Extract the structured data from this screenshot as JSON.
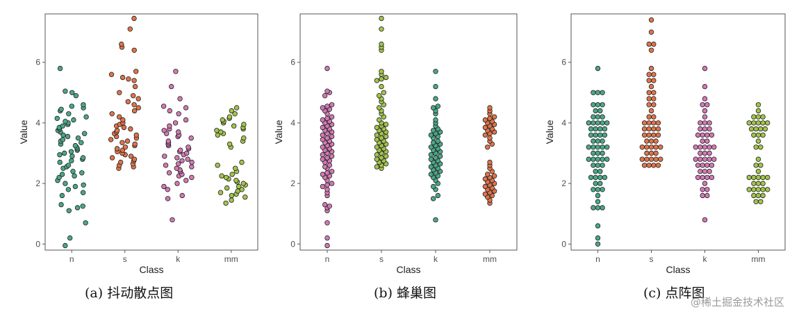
{
  "figure": {
    "captions": [
      "(a)  抖动散点图",
      "(b)  蜂巢图",
      "(c)  点阵图"
    ],
    "watermark": "@稀土掘金技术社区"
  },
  "colors": {
    "n_jitter": "#4aa88a",
    "s_jitter": "#e0744a",
    "k_jitter": "#d479b5",
    "mm_jitter": "#a2c44a",
    "n_beeswarm": "#d479b5",
    "s_beeswarm": "#a2c44a",
    "k_beeswarm": "#4aa88a",
    "mm_beeswarm": "#e0744a",
    "n_dot": "#4aa88a",
    "s_dot": "#e0744a",
    "k_dot": "#d479b5",
    "mm_dot": "#a2c44a",
    "point_edge": "#1f1f1f",
    "panel_border": "#555555"
  },
  "chart_data": [
    {
      "type": "scatter",
      "style": "jitter",
      "categories": [
        "n",
        "s",
        "k",
        "mm"
      ],
      "xlabel": "Class",
      "ylabel": "Value",
      "ylim": [
        -0.2,
        7.6
      ],
      "yticks": [
        0,
        2,
        4,
        6
      ],
      "grid": false,
      "series": [
        {
          "category": "n",
          "color_key": "n_jitter",
          "values": [
            -0.05,
            0.2,
            0.7,
            1.1,
            1.2,
            1.3,
            1.25,
            1.6,
            1.7,
            1.8,
            1.9,
            1.95,
            2.0,
            2.1,
            2.2,
            2.25,
            2.3,
            2.35,
            2.4,
            2.5,
            2.55,
            2.6,
            2.7,
            2.75,
            2.8,
            2.85,
            2.9,
            2.95,
            3.0,
            3.05,
            3.1,
            3.15,
            3.2,
            3.25,
            3.3,
            3.35,
            3.4,
            3.45,
            3.5,
            3.55,
            3.6,
            3.65,
            3.7,
            3.75,
            3.8,
            3.85,
            3.9,
            3.95,
            4.0,
            4.05,
            4.1,
            4.15,
            4.2,
            4.3,
            4.4,
            4.45,
            4.5,
            4.55,
            4.6,
            4.9,
            5.0,
            5.05,
            5.8
          ]
        },
        {
          "category": "s",
          "color_key": "s_jitter",
          "values": [
            2.5,
            2.55,
            2.6,
            2.65,
            2.7,
            2.75,
            2.8,
            2.85,
            2.9,
            2.95,
            3.0,
            3.05,
            3.1,
            3.15,
            3.2,
            3.25,
            3.3,
            3.35,
            3.4,
            3.45,
            3.5,
            3.55,
            3.6,
            3.65,
            3.7,
            3.75,
            3.8,
            3.85,
            3.9,
            3.95,
            4.0,
            4.1,
            4.2,
            4.3,
            4.4,
            4.5,
            4.6,
            4.7,
            4.8,
            4.9,
            5.0,
            5.2,
            5.4,
            5.45,
            5.5,
            5.6,
            5.7,
            6.4,
            6.5,
            6.6,
            7.1,
            7.45
          ]
        },
        {
          "category": "k",
          "color_key": "k_jitter",
          "values": [
            0.8,
            1.5,
            1.6,
            1.8,
            1.9,
            2.0,
            2.1,
            2.2,
            2.25,
            2.3,
            2.35,
            2.4,
            2.45,
            2.5,
            2.55,
            2.6,
            2.65,
            2.7,
            2.75,
            2.8,
            2.85,
            2.9,
            2.95,
            3.0,
            3.05,
            3.1,
            3.15,
            3.2,
            3.25,
            3.3,
            3.35,
            3.4,
            3.5,
            3.55,
            3.6,
            3.65,
            3.7,
            3.75,
            3.8,
            3.9,
            4.0,
            4.1,
            4.3,
            4.4,
            4.5,
            4.55,
            4.8,
            5.2,
            5.7
          ]
        },
        {
          "category": "mm",
          "color_key": "mm_jitter",
          "values": [
            1.35,
            1.45,
            1.55,
            1.6,
            1.65,
            1.7,
            1.75,
            1.8,
            1.85,
            1.9,
            1.95,
            2.0,
            2.05,
            2.1,
            2.15,
            2.2,
            2.25,
            2.3,
            2.4,
            2.5,
            2.6,
            2.7,
            3.2,
            3.3,
            3.4,
            3.5,
            3.6,
            3.65,
            3.7,
            3.75,
            3.8,
            3.85,
            3.9,
            3.95,
            4.0,
            4.05,
            4.1,
            4.15,
            4.2,
            4.3,
            4.4,
            4.5
          ]
        }
      ]
    },
    {
      "type": "scatter",
      "style": "beeswarm",
      "categories": [
        "n",
        "s",
        "k",
        "mm"
      ],
      "xlabel": "Class",
      "ylabel": "Value",
      "ylim": [
        -0.2,
        7.6
      ],
      "yticks": [
        0,
        2,
        4,
        6
      ],
      "grid": false,
      "series": [
        {
          "category": "n",
          "color_key": "n_beeswarm",
          "values": [
            -0.05,
            0.2,
            0.7,
            1.1,
            1.2,
            1.3,
            1.25,
            1.6,
            1.7,
            1.8,
            1.9,
            1.95,
            2.0,
            2.1,
            2.2,
            2.25,
            2.3,
            2.35,
            2.4,
            2.5,
            2.55,
            2.6,
            2.7,
            2.75,
            2.8,
            2.85,
            2.9,
            2.95,
            3.0,
            3.05,
            3.1,
            3.15,
            3.2,
            3.25,
            3.3,
            3.35,
            3.4,
            3.45,
            3.5,
            3.55,
            3.6,
            3.65,
            3.7,
            3.75,
            3.8,
            3.85,
            3.9,
            3.95,
            4.0,
            4.05,
            4.1,
            4.15,
            4.2,
            4.3,
            4.4,
            4.45,
            4.5,
            4.55,
            4.6,
            4.9,
            5.0,
            5.05,
            5.8
          ]
        },
        {
          "category": "s",
          "color_key": "s_beeswarm",
          "values": [
            2.5,
            2.55,
            2.6,
            2.65,
            2.7,
            2.75,
            2.8,
            2.85,
            2.9,
            2.95,
            3.0,
            3.05,
            3.1,
            3.15,
            3.2,
            3.25,
            3.3,
            3.35,
            3.4,
            3.45,
            3.5,
            3.55,
            3.6,
            3.65,
            3.7,
            3.75,
            3.8,
            3.85,
            3.9,
            3.95,
            4.0,
            4.1,
            4.2,
            4.3,
            4.4,
            4.5,
            4.6,
            4.7,
            4.8,
            4.9,
            5.0,
            5.2,
            5.4,
            5.45,
            5.5,
            5.6,
            5.7,
            6.4,
            6.5,
            6.6,
            7.1,
            7.45
          ]
        },
        {
          "category": "k",
          "color_key": "k_beeswarm",
          "values": [
            0.8,
            1.5,
            1.6,
            1.8,
            1.9,
            2.0,
            2.1,
            2.2,
            2.25,
            2.3,
            2.35,
            2.4,
            2.45,
            2.5,
            2.55,
            2.6,
            2.65,
            2.7,
            2.75,
            2.8,
            2.85,
            2.9,
            2.95,
            3.0,
            3.05,
            3.1,
            3.15,
            3.2,
            3.25,
            3.3,
            3.35,
            3.4,
            3.5,
            3.55,
            3.6,
            3.65,
            3.7,
            3.75,
            3.8,
            3.9,
            4.0,
            4.1,
            4.3,
            4.4,
            4.5,
            4.55,
            4.8,
            5.2,
            5.7
          ]
        },
        {
          "category": "mm",
          "color_key": "mm_beeswarm",
          "values": [
            1.35,
            1.45,
            1.55,
            1.6,
            1.65,
            1.7,
            1.75,
            1.8,
            1.85,
            1.9,
            1.95,
            2.0,
            2.05,
            2.1,
            2.15,
            2.2,
            2.25,
            2.3,
            2.4,
            2.5,
            2.6,
            2.7,
            3.2,
            3.3,
            3.4,
            3.5,
            3.6,
            3.65,
            3.7,
            3.75,
            3.8,
            3.85,
            3.9,
            3.95,
            4.0,
            4.05,
            4.1,
            4.15,
            4.2,
            4.3,
            4.4,
            4.5
          ]
        }
      ]
    },
    {
      "type": "scatter",
      "style": "dotplot",
      "categories": [
        "n",
        "s",
        "k",
        "mm"
      ],
      "xlabel": "Class",
      "ylabel": "Value",
      "ylim": [
        -0.2,
        7.6
      ],
      "yticks": [
        0,
        2,
        4,
        6
      ],
      "grid": false,
      "series": [
        {
          "category": "n",
          "color_key": "n_dot",
          "values": [
            -0.05,
            0.2,
            0.7,
            1.1,
            1.2,
            1.3,
            1.25,
            1.6,
            1.7,
            1.8,
            1.9,
            1.95,
            2.0,
            2.1,
            2.2,
            2.25,
            2.3,
            2.35,
            2.4,
            2.5,
            2.55,
            2.6,
            2.7,
            2.75,
            2.8,
            2.85,
            2.9,
            2.95,
            3.0,
            3.05,
            3.1,
            3.15,
            3.2,
            3.25,
            3.3,
            3.35,
            3.4,
            3.45,
            3.5,
            3.55,
            3.6,
            3.65,
            3.7,
            3.75,
            3.8,
            3.85,
            3.9,
            3.95,
            4.0,
            4.05,
            4.1,
            4.15,
            4.2,
            4.3,
            4.4,
            4.45,
            4.5,
            4.55,
            4.6,
            4.9,
            5.0,
            5.05,
            5.8
          ]
        },
        {
          "category": "s",
          "color_key": "s_dot",
          "values": [
            2.5,
            2.55,
            2.6,
            2.65,
            2.7,
            2.75,
            2.8,
            2.85,
            2.9,
            2.95,
            3.0,
            3.05,
            3.1,
            3.15,
            3.2,
            3.25,
            3.3,
            3.35,
            3.4,
            3.45,
            3.5,
            3.55,
            3.6,
            3.65,
            3.7,
            3.75,
            3.8,
            3.85,
            3.9,
            3.95,
            4.0,
            4.1,
            4.2,
            4.3,
            4.4,
            4.5,
            4.6,
            4.7,
            4.8,
            4.9,
            5.0,
            5.2,
            5.4,
            5.45,
            5.5,
            5.6,
            5.7,
            6.4,
            6.5,
            6.6,
            7.1,
            7.45
          ]
        },
        {
          "category": "k",
          "color_key": "k_dot",
          "values": [
            0.8,
            1.5,
            1.6,
            1.8,
            1.9,
            2.0,
            2.1,
            2.2,
            2.25,
            2.3,
            2.35,
            2.4,
            2.45,
            2.5,
            2.55,
            2.6,
            2.65,
            2.7,
            2.75,
            2.8,
            2.85,
            2.9,
            2.95,
            3.0,
            3.05,
            3.1,
            3.15,
            3.2,
            3.25,
            3.3,
            3.35,
            3.4,
            3.5,
            3.55,
            3.6,
            3.65,
            3.7,
            3.75,
            3.8,
            3.9,
            4.0,
            4.1,
            4.3,
            4.4,
            4.5,
            4.55,
            4.8,
            5.2,
            5.7
          ]
        },
        {
          "category": "mm",
          "color_key": "mm_dot",
          "values": [
            1.35,
            1.45,
            1.55,
            1.6,
            1.65,
            1.7,
            1.75,
            1.8,
            1.85,
            1.9,
            1.95,
            2.0,
            2.05,
            2.1,
            2.15,
            2.2,
            2.25,
            2.3,
            2.4,
            2.5,
            2.6,
            2.7,
            3.2,
            3.3,
            3.4,
            3.5,
            3.6,
            3.65,
            3.7,
            3.75,
            3.8,
            3.85,
            3.9,
            3.95,
            4.0,
            4.05,
            4.1,
            4.15,
            4.2,
            4.3,
            4.4,
            4.5
          ]
        }
      ]
    }
  ]
}
